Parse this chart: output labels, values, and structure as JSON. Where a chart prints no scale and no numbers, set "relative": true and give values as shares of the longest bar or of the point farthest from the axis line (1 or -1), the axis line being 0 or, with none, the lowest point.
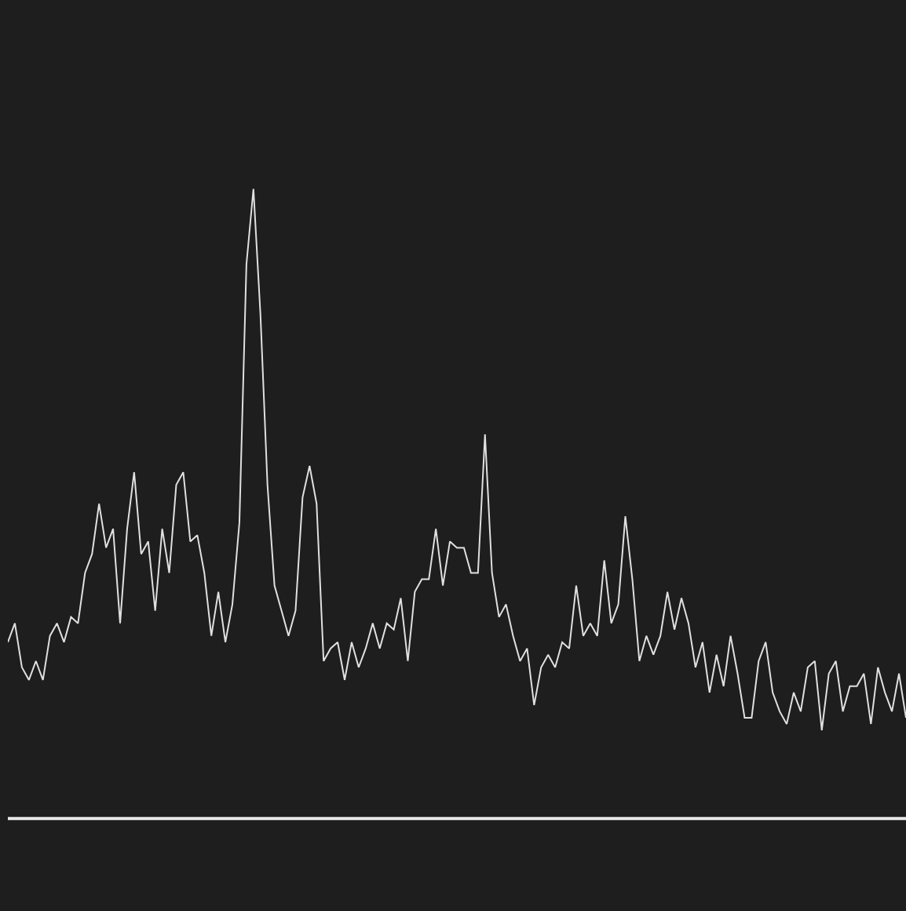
{
  "chart_data": {
    "type": "line",
    "relative": true,
    "marker": "none",
    "line_style": "solid",
    "categories": [
      null,
      null,
      null,
      null,
      null,
      null,
      null,
      null,
      null,
      null,
      null,
      null,
      null,
      null,
      null,
      null,
      null,
      null,
      null,
      null,
      null,
      null,
      null,
      null,
      null,
      null,
      null,
      null,
      null,
      null,
      null,
      null,
      null,
      null,
      null,
      null,
      null,
      null,
      null,
      null,
      null,
      null,
      null,
      null,
      null,
      null,
      null,
      null,
      null,
      null,
      null,
      null,
      null,
      null,
      null,
      null,
      null,
      null,
      null,
      null,
      null,
      null,
      null,
      null,
      null,
      null,
      null,
      null,
      null,
      null,
      null,
      null,
      null,
      null,
      null,
      null,
      null,
      null,
      null,
      null,
      null,
      null,
      null,
      null,
      null,
      null,
      null,
      null,
      null,
      null,
      null,
      null,
      null,
      null,
      null,
      null,
      null,
      null,
      null,
      null,
      null,
      null,
      null,
      null,
      null,
      null,
      null,
      null,
      null,
      null,
      null,
      null,
      null,
      null,
      null,
      null,
      null,
      null,
      null,
      null,
      null,
      null,
      null,
      null,
      null,
      null,
      null,
      null,
      null
    ],
    "series": [
      {
        "color": "#e0e0e0",
        "values": [
          0.28,
          0.31,
          0.24,
          0.22,
          0.25,
          0.22,
          0.29,
          0.31,
          0.28,
          0.32,
          0.31,
          0.39,
          0.42,
          0.5,
          0.43,
          0.46,
          0.31,
          0.46,
          0.55,
          0.42,
          0.44,
          0.33,
          0.46,
          0.39,
          0.53,
          0.55,
          0.44,
          0.45,
          0.39,
          0.29,
          0.36,
          0.28,
          0.34,
          0.47,
          0.88,
          1.0,
          0.8,
          0.53,
          0.37,
          0.33,
          0.29,
          0.33,
          0.51,
          0.56,
          0.5,
          0.25,
          0.27,
          0.28,
          0.22,
          0.28,
          0.24,
          0.27,
          0.31,
          0.27,
          0.31,
          0.3,
          0.35,
          0.25,
          0.36,
          0.38,
          0.38,
          0.46,
          0.37,
          0.44,
          0.43,
          0.43,
          0.39,
          0.39,
          0.61,
          0.39,
          0.32,
          0.34,
          0.29,
          0.25,
          0.27,
          0.18,
          0.24,
          0.26,
          0.24,
          0.28,
          0.27,
          0.37,
          0.29,
          0.31,
          0.29,
          0.41,
          0.31,
          0.34,
          0.48,
          0.38,
          0.25,
          0.29,
          0.26,
          0.29,
          0.36,
          0.3,
          0.35,
          0.31,
          0.24,
          0.28,
          0.2,
          0.26,
          0.21,
          0.29,
          0.23,
          0.16,
          0.16,
          0.25,
          0.28,
          0.2,
          0.17,
          0.15,
          0.2,
          0.17,
          0.24,
          0.25,
          0.14,
          0.23,
          0.25,
          0.17,
          0.21,
          0.21,
          0.23,
          0.15,
          0.24,
          0.2,
          0.17,
          0.23,
          0.16
        ]
      }
    ]
  }
}
